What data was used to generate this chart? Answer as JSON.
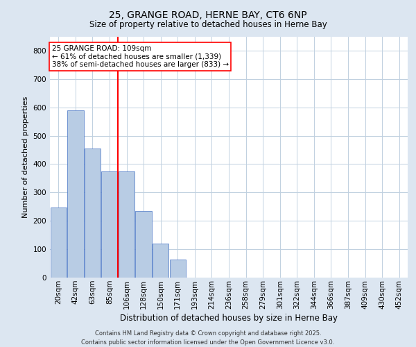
{
  "title1": "25, GRANGE ROAD, HERNE BAY, CT6 6NP",
  "title2": "Size of property relative to detached houses in Herne Bay",
  "xlabel": "Distribution of detached houses by size in Herne Bay",
  "ylabel": "Number of detached properties",
  "categories": [
    "20sqm",
    "42sqm",
    "63sqm",
    "85sqm",
    "106sqm",
    "128sqm",
    "150sqm",
    "171sqm",
    "193sqm",
    "214sqm",
    "236sqm",
    "258sqm",
    "279sqm",
    "301sqm",
    "322sqm",
    "344sqm",
    "366sqm",
    "387sqm",
    "409sqm",
    "430sqm",
    "452sqm"
  ],
  "values": [
    248,
    590,
    455,
    375,
    375,
    235,
    120,
    63,
    0,
    0,
    0,
    0,
    0,
    0,
    0,
    0,
    0,
    0,
    0,
    0,
    0
  ],
  "bar_color": "#b8cce4",
  "bar_edge_color": "#4472c4",
  "background_color": "#dce6f1",
  "plot_bg_color": "#ffffff",
  "grid_color": "#c0d0e0",
  "vline_color": "#ff0000",
  "annotation_text": "25 GRANGE ROAD: 109sqm\n← 61% of detached houses are smaller (1,339)\n38% of semi-detached houses are larger (833) →",
  "annotation_box_color": "#ffffff",
  "annotation_box_edge": "#ff0000",
  "footer1": "Contains HM Land Registry data © Crown copyright and database right 2025.",
  "footer2": "Contains public sector information licensed under the Open Government Licence v3.0.",
  "ylim": [
    0,
    850
  ],
  "yticks": [
    0,
    100,
    200,
    300,
    400,
    500,
    600,
    700,
    800
  ],
  "title1_fontsize": 10,
  "title2_fontsize": 8.5,
  "xlabel_fontsize": 8.5,
  "ylabel_fontsize": 8,
  "tick_fontsize": 7.5,
  "footer_fontsize": 6,
  "ann_fontsize": 7.5,
  "vline_x_idx": 3.5
}
